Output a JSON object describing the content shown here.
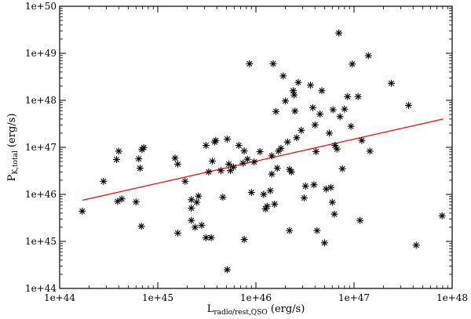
{
  "chart_data": {
    "type": "scatter",
    "title": "",
    "xlabel": {
      "main": "L",
      "sub": "radio/rest,QSO",
      "unit": " (erg/s)"
    },
    "ylabel": {
      "main": "P",
      "sub": "K,total",
      "unit": " (erg/s)"
    },
    "x_scale": "log",
    "y_scale": "log",
    "xlim": [
      1e+44,
      1e+48
    ],
    "ylim": [
      1e+44,
      1e+50
    ],
    "x_ticks": [
      {
        "value": 1e+44,
        "label": "1e+44"
      },
      {
        "value": 1e+45,
        "label": "1e+45"
      },
      {
        "value": 1e+46,
        "label": "1e+46"
      },
      {
        "value": 1e+47,
        "label": "1e+47"
      },
      {
        "value": 1e+48,
        "label": "1e+48"
      }
    ],
    "y_ticks": [
      {
        "value": 1e+44,
        "label": "1e+44"
      },
      {
        "value": 1e+45,
        "label": "1e+45"
      },
      {
        "value": 1e+46,
        "label": "1e+46"
      },
      {
        "value": 1e+47,
        "label": "1e+47"
      },
      {
        "value": 1e+48,
        "label": "1e+48"
      },
      {
        "value": 1e+49,
        "label": "1e+49"
      },
      {
        "value": 1e+50,
        "label": "1e+50"
      }
    ],
    "grid": false,
    "marker": "asterisk",
    "marker_color": "#000000",
    "fit_line": {
      "color": "#ff0000",
      "x": [
        1.7e+44,
        8.1e+47
      ],
      "y": [
        7.5e+45,
        4e+47
      ]
    },
    "points": [
      {
        "x": 1.7e+44,
        "y": 4.4e+45
      },
      {
        "x": 2.8e+44,
        "y": 1.9e+46
      },
      {
        "x": 3.8e+44,
        "y": 5.5e+46
      },
      {
        "x": 4e+44,
        "y": 8.3e+46
      },
      {
        "x": 3.9e+44,
        "y": 7.1e+45
      },
      {
        "x": 4.3e+44,
        "y": 8e+45
      },
      {
        "x": 6e+44,
        "y": 6.9e+45
      },
      {
        "x": 6.4e+44,
        "y": 5.7e+46
      },
      {
        "x": 6.6e+44,
        "y": 3.6e+46
      },
      {
        "x": 6.9e+44,
        "y": 9e+46
      },
      {
        "x": 7.2e+44,
        "y": 9.9e+46
      },
      {
        "x": 6.8e+44,
        "y": 2.1e+45
      },
      {
        "x": 1.5e+45,
        "y": 5.9e+46
      },
      {
        "x": 1.6e+45,
        "y": 4.4e+46
      },
      {
        "x": 1.6e+45,
        "y": 1.5e+45
      },
      {
        "x": 1.9e+45,
        "y": 1.9e+46
      },
      {
        "x": 2.2e+45,
        "y": 7.7e+45
      },
      {
        "x": 2.2e+45,
        "y": 5.1e+45
      },
      {
        "x": 2.2e+45,
        "y": 2.8e+45
      },
      {
        "x": 2.4e+45,
        "y": 2e+45
      },
      {
        "x": 2.5e+45,
        "y": 6.8e+45
      },
      {
        "x": 2.6e+45,
        "y": 9.2e+45
      },
      {
        "x": 2.8e+45,
        "y": 2.2e+45
      },
      {
        "x": 3.1e+45,
        "y": 1.1e+47
      },
      {
        "x": 3.1e+45,
        "y": 1.2e+45
      },
      {
        "x": 3.3e+45,
        "y": 3e+46
      },
      {
        "x": 3.5e+45,
        "y": 1.2e+45
      },
      {
        "x": 3.6e+45,
        "y": 5.1e+46
      },
      {
        "x": 3.8e+45,
        "y": 1.3e+47
      },
      {
        "x": 3.9e+45,
        "y": 1.4e+47
      },
      {
        "x": 4.4e+45,
        "y": 3.2e+46
      },
      {
        "x": 4.6e+45,
        "y": 8.7e+45
      },
      {
        "x": 5.1e+45,
        "y": 1.5e+47
      },
      {
        "x": 5.3e+45,
        "y": 4.4e+46
      },
      {
        "x": 5.5e+45,
        "y": 3.2e+46
      },
      {
        "x": 5.1e+45,
        "y": 2.5e+44
      },
      {
        "x": 5.9e+45,
        "y": 3.8e+46
      },
      {
        "x": 6.7e+45,
        "y": 1.1e+47
      },
      {
        "x": 7.4e+45,
        "y": 4.6e+46
      },
      {
        "x": 7.6e+45,
        "y": 8.4e+46
      },
      {
        "x": 7.6e+45,
        "y": 1.1e+45
      },
      {
        "x": 8.2e+45,
        "y": 5.6e+46
      },
      {
        "x": 8.6e+45,
        "y": 6e+48
      },
      {
        "x": 9e+45,
        "y": 1.1e+46
      },
      {
        "x": 9.6e+45,
        "y": 4.9e+46
      },
      {
        "x": 1.1e+46,
        "y": 8.1e+46
      },
      {
        "x": 1.2e+46,
        "y": 1e+46
      },
      {
        "x": 1.25e+46,
        "y": 4.9e+45
      },
      {
        "x": 1.3e+46,
        "y": 5.6e+45
      },
      {
        "x": 1.4e+46,
        "y": 1.2e+46
      },
      {
        "x": 1.45e+46,
        "y": 2.7e+46
      },
      {
        "x": 1.45e+46,
        "y": 6.6e+46
      },
      {
        "x": 1.5e+46,
        "y": 6e+48
      },
      {
        "x": 1.55e+46,
        "y": 6.2e+45
      },
      {
        "x": 1.6e+46,
        "y": 5.8e+47
      },
      {
        "x": 1.65e+46,
        "y": 3.6e+46
      },
      {
        "x": 1.7e+46,
        "y": 8.3e+46
      },
      {
        "x": 1.8e+46,
        "y": 9.5e+46
      },
      {
        "x": 1.9e+46,
        "y": 3.3e+48
      },
      {
        "x": 2e+46,
        "y": 9.7e+47
      },
      {
        "x": 2.1e+46,
        "y": 1.3e+47
      },
      {
        "x": 2.2e+46,
        "y": 3.4e+46
      },
      {
        "x": 2.2e+46,
        "y": 1.7e+45
      },
      {
        "x": 2.3e+46,
        "y": 3e+46
      },
      {
        "x": 2.4e+46,
        "y": 1.6e+48
      },
      {
        "x": 2.45e+46,
        "y": 1.3e+48
      },
      {
        "x": 2.5e+46,
        "y": 5.9e+47
      },
      {
        "x": 2.6e+46,
        "y": 1.6e+47
      },
      {
        "x": 2.7e+46,
        "y": 2.4e+48
      },
      {
        "x": 2.9e+46,
        "y": 2.3e+47
      },
      {
        "x": 3.1e+46,
        "y": 8.4e+45
      },
      {
        "x": 3.2e+46,
        "y": 1.5e+46
      },
      {
        "x": 3.6e+46,
        "y": 2.1e+48
      },
      {
        "x": 3.8e+46,
        "y": 7e+47
      },
      {
        "x": 3.9e+46,
        "y": 1.6e+46
      },
      {
        "x": 4e+46,
        "y": 3e+47
      },
      {
        "x": 4.1e+46,
        "y": 8.1e+46
      },
      {
        "x": 4.2e+46,
        "y": 1.7e+45
      },
      {
        "x": 4.5e+46,
        "y": 5.1e+47
      },
      {
        "x": 4.7e+46,
        "y": 1.6e+48
      },
      {
        "x": 5e+46,
        "y": 9.3e+44
      },
      {
        "x": 5.2e+46,
        "y": 1.3e+46
      },
      {
        "x": 5.6e+46,
        "y": 2e+47
      },
      {
        "x": 5.8e+46,
        "y": 1.4e+46
      },
      {
        "x": 6e+46,
        "y": 6.8e+45
      },
      {
        "x": 6.1e+46,
        "y": 6.3e+47
      },
      {
        "x": 6.3e+46,
        "y": 3.8e+45
      },
      {
        "x": 6.4e+46,
        "y": 1.1e+47
      },
      {
        "x": 6.7e+46,
        "y": 9.2e+46
      },
      {
        "x": 7e+46,
        "y": 2.7e+49
      },
      {
        "x": 7.2e+46,
        "y": 4.5e+47
      },
      {
        "x": 7.6e+46,
        "y": 3.5e+46
      },
      {
        "x": 8e+46,
        "y": 6.5e+47
      },
      {
        "x": 8.6e+46,
        "y": 1.2e+48
      },
      {
        "x": 9.3e+46,
        "y": 2.8e+47
      },
      {
        "x": 9.6e+46,
        "y": 5.9e+48
      },
      {
        "x": 1.1e+47,
        "y": 1.2e+48
      },
      {
        "x": 1.15e+47,
        "y": 2.8e+45
      },
      {
        "x": 1.2e+47,
        "y": 1.4e+47
      },
      {
        "x": 1.4e+47,
        "y": 8.9e+48
      },
      {
        "x": 1.45e+47,
        "y": 8.3e+46
      },
      {
        "x": 2.4e+47,
        "y": 2.3e+48
      },
      {
        "x": 3.6e+47,
        "y": 7.8e+47
      },
      {
        "x": 4.3e+47,
        "y": 8.3e+44
      },
      {
        "x": 7.9e+47,
        "y": 3.5e+45
      }
    ]
  }
}
